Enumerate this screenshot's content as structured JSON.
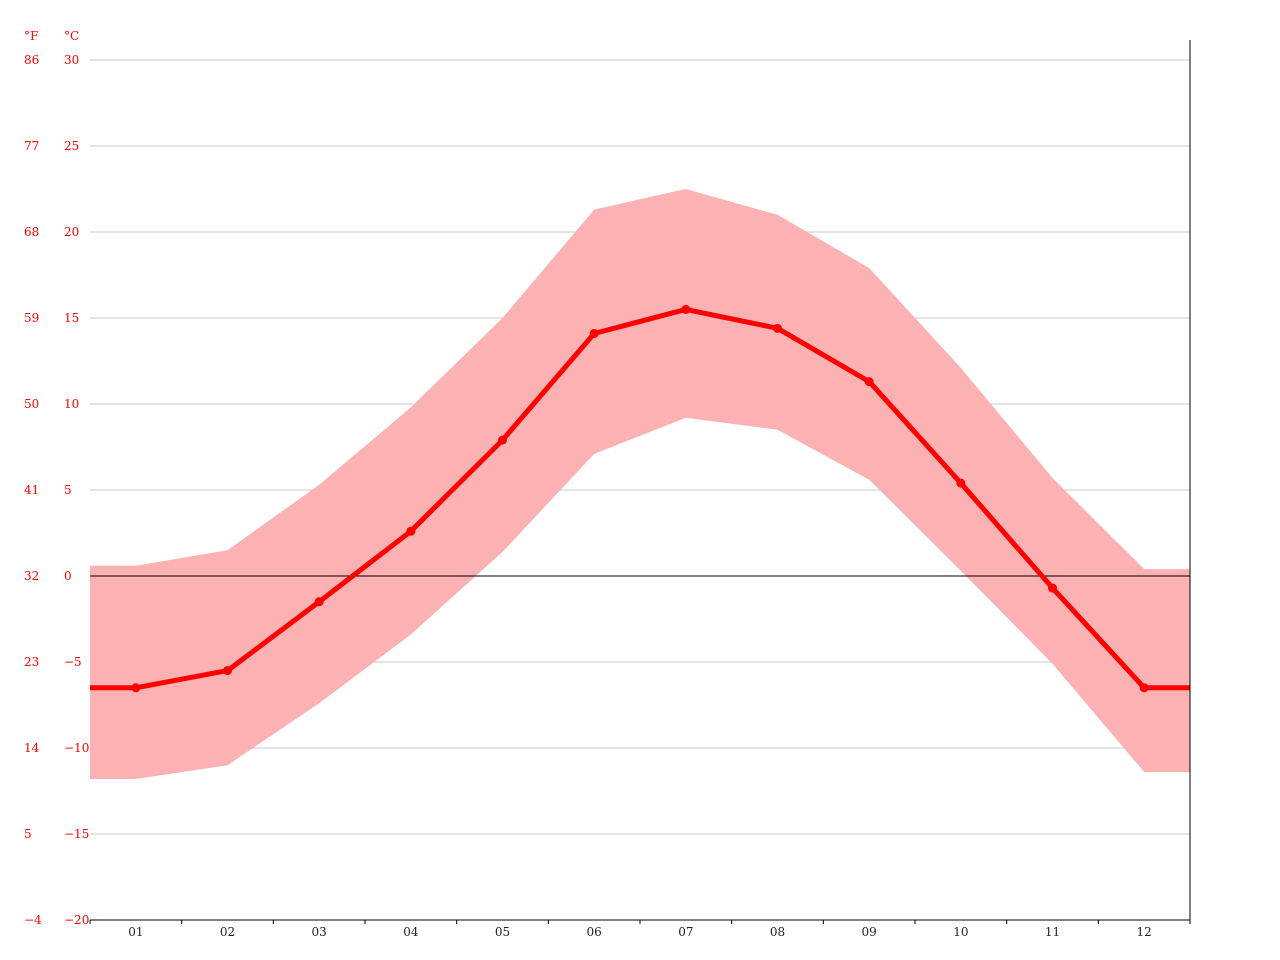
{
  "units": {
    "fahrenheit": "°F",
    "celsius": "°C"
  },
  "colors": {
    "main": "#ff0000",
    "band": "#fcb1b2",
    "grid": "#c8c8c8",
    "zero_line": "#000000",
    "axis_text": "#222222"
  },
  "chart_data": {
    "type": "line",
    "categories": [
      "01",
      "02",
      "03",
      "04",
      "05",
      "06",
      "07",
      "08",
      "09",
      "10",
      "11",
      "12"
    ],
    "series": [
      {
        "values": [
          -6.5,
          -5.5,
          -1.5,
          2.6,
          7.9,
          14.1,
          15.5,
          14.4,
          11.3,
          5.4,
          -0.7,
          -6.5
        ]
      }
    ],
    "band": {
      "upper": [
        0.6,
        1.5,
        5.3,
        9.8,
        15.0,
        21.3,
        22.5,
        21.0,
        17.9,
        12.1,
        5.7,
        0.4
      ],
      "lower": [
        -11.8,
        -11.0,
        -7.4,
        -3.4,
        1.4,
        7.1,
        9.2,
        8.5,
        5.6,
        0.3,
        -5.1,
        -11.4
      ]
    },
    "ylim": [
      -20,
      30
    ],
    "y_ticks_c": [
      "30",
      "25",
      "20",
      "15",
      "10",
      "5",
      "0",
      "−5",
      "−10",
      "−15",
      "−20"
    ],
    "y_ticks_f": [
      "86",
      "77",
      "68",
      "59",
      "50",
      "41",
      "32",
      "23",
      "14",
      "5",
      "−4"
    ],
    "grid": true
  }
}
